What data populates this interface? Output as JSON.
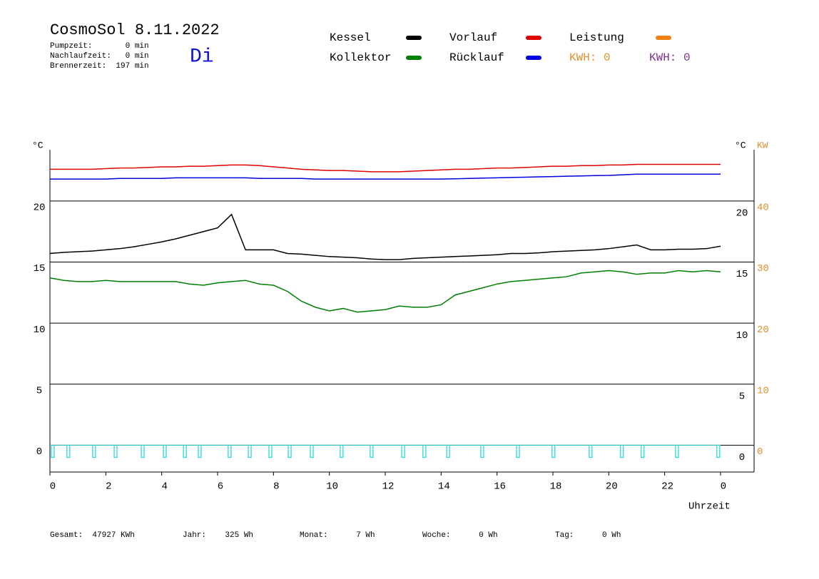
{
  "chart_data": {
    "type": "line",
    "title": "CosmoSol 8.11.2022",
    "day": "Di",
    "info": [
      "Pumpzeit:       0 min",
      "Nachlaufzeit:   0 min",
      "Brennerzeit:  197 min"
    ],
    "xlabel": "Uhrzeit",
    "ylabel": "°C",
    "y2label_left": "°C",
    "y2label": "KW",
    "xlim": [
      0,
      25.2
    ],
    "xticks": [
      0,
      2,
      4,
      6,
      8,
      10,
      12,
      14,
      16,
      18,
      20,
      22,
      {
        "value": 24,
        "label": "0"
      }
    ],
    "ylim": [
      -2.2,
      24.2
    ],
    "yticks": [
      0,
      5,
      10,
      15,
      20
    ],
    "y2lim": [
      -4.4,
      48.4
    ],
    "y2ticks": [
      0,
      10,
      20,
      30,
      40
    ],
    "y2color": "#e09030",
    "grid": true,
    "x": [
      0,
      0.5,
      1,
      1.5,
      2,
      2.5,
      3,
      3.5,
      4,
      4.5,
      5,
      5.5,
      6,
      6.5,
      7,
      7.5,
      8,
      8.5,
      9,
      9.5,
      10,
      10.5,
      11,
      11.5,
      12,
      12.5,
      13,
      13.5,
      14,
      14.5,
      15,
      15.5,
      16,
      16.5,
      17,
      17.5,
      18,
      18.5,
      19,
      19.5,
      20,
      20.5,
      21,
      21.5,
      22,
      22.5,
      23,
      23.5,
      24
    ],
    "series": [
      {
        "name": "Kessel",
        "color": "#000000",
        "values": [
          15.7,
          15.8,
          15.85,
          15.9,
          16.0,
          16.1,
          16.25,
          16.45,
          16.65,
          16.9,
          17.2,
          17.5,
          17.8,
          18.9,
          16.0,
          16.0,
          16.0,
          15.7,
          15.65,
          15.55,
          15.45,
          15.4,
          15.35,
          15.25,
          15.2,
          15.2,
          15.3,
          15.35,
          15.4,
          15.45,
          15.5,
          15.55,
          15.6,
          15.7,
          15.7,
          15.75,
          15.85,
          15.9,
          15.95,
          16.0,
          16.1,
          16.25,
          16.4,
          16.0,
          16.0,
          16.05,
          16.05,
          16.1,
          16.3
        ]
      },
      {
        "name": "Kollektor",
        "color": "#008000",
        "values": [
          13.7,
          13.5,
          13.4,
          13.4,
          13.5,
          13.4,
          13.4,
          13.4,
          13.4,
          13.4,
          13.2,
          13.1,
          13.3,
          13.4,
          13.5,
          13.2,
          13.1,
          12.6,
          11.8,
          11.3,
          11.0,
          11.2,
          10.9,
          11.0,
          11.1,
          11.4,
          11.3,
          11.3,
          11.5,
          12.3,
          12.6,
          12.9,
          13.2,
          13.4,
          13.5,
          13.6,
          13.7,
          13.8,
          14.1,
          14.2,
          14.3,
          14.2,
          14.0,
          14.1,
          14.1,
          14.3,
          14.2,
          14.3,
          14.2
        ]
      },
      {
        "name": "Vorlauf",
        "color": "#e00000",
        "values": [
          22.6,
          22.6,
          22.6,
          22.6,
          22.65,
          22.7,
          22.7,
          22.75,
          22.8,
          22.8,
          22.85,
          22.85,
          22.9,
          22.95,
          22.95,
          22.9,
          22.8,
          22.7,
          22.6,
          22.55,
          22.5,
          22.5,
          22.45,
          22.4,
          22.4,
          22.4,
          22.45,
          22.5,
          22.55,
          22.6,
          22.6,
          22.65,
          22.7,
          22.7,
          22.75,
          22.8,
          22.85,
          22.85,
          22.9,
          22.9,
          22.95,
          22.95,
          23.0,
          23.0,
          23.0,
          23.0,
          23.0,
          23.0,
          23.0
        ]
      },
      {
        "name": "Rücklauf",
        "color": "#0000e0",
        "values": [
          21.8,
          21.8,
          21.8,
          21.8,
          21.8,
          21.85,
          21.85,
          21.85,
          21.85,
          21.9,
          21.9,
          21.9,
          21.9,
          21.9,
          21.9,
          21.85,
          21.85,
          21.85,
          21.85,
          21.8,
          21.8,
          21.8,
          21.8,
          21.8,
          21.8,
          21.8,
          21.8,
          21.8,
          21.8,
          21.82,
          21.85,
          21.88,
          21.9,
          21.93,
          21.95,
          21.98,
          22.0,
          22.03,
          22.05,
          22.08,
          22.1,
          22.15,
          22.2,
          22.2,
          22.2,
          22.2,
          22.2,
          22.2,
          22.2
        ]
      }
    ],
    "legend_only": [
      {
        "name": "Leistung",
        "color": "#f08010"
      }
    ],
    "kwh": [
      {
        "text": "KWH: 0",
        "color": "#e09030"
      },
      {
        "text": "KWH: 0",
        "color": "#803090"
      }
    ],
    "pulses": {
      "color": "#30d8d8",
      "x": [
        0.1,
        0.66,
        1.58,
        2.35,
        3.32,
        4.11,
        4.83,
        5.36,
        6.43,
        7.15,
        7.89,
        8.58,
        9.37,
        10.44,
        11.51,
        12.64,
        13.4,
        14.25,
        15.47,
        16.75,
        18.02,
        19.35,
        20.47,
        21.21,
        22.44,
        23.92
      ],
      "values": [
        -1,
        -1,
        -1,
        -1,
        -1,
        -1,
        -1,
        -1,
        -1,
        -1,
        -1,
        -1,
        -1,
        -1,
        -1,
        -1,
        -1,
        -1,
        -1,
        -1,
        -1,
        -1,
        -1,
        -1,
        -1,
        -1
      ]
    },
    "footer": [
      "Gesamt:  47927 KWh",
      "Jahr:    325 Wh",
      "Monat:      7 Wh",
      "Woche:      0 Wh",
      "Tag:      0 Wh"
    ]
  }
}
